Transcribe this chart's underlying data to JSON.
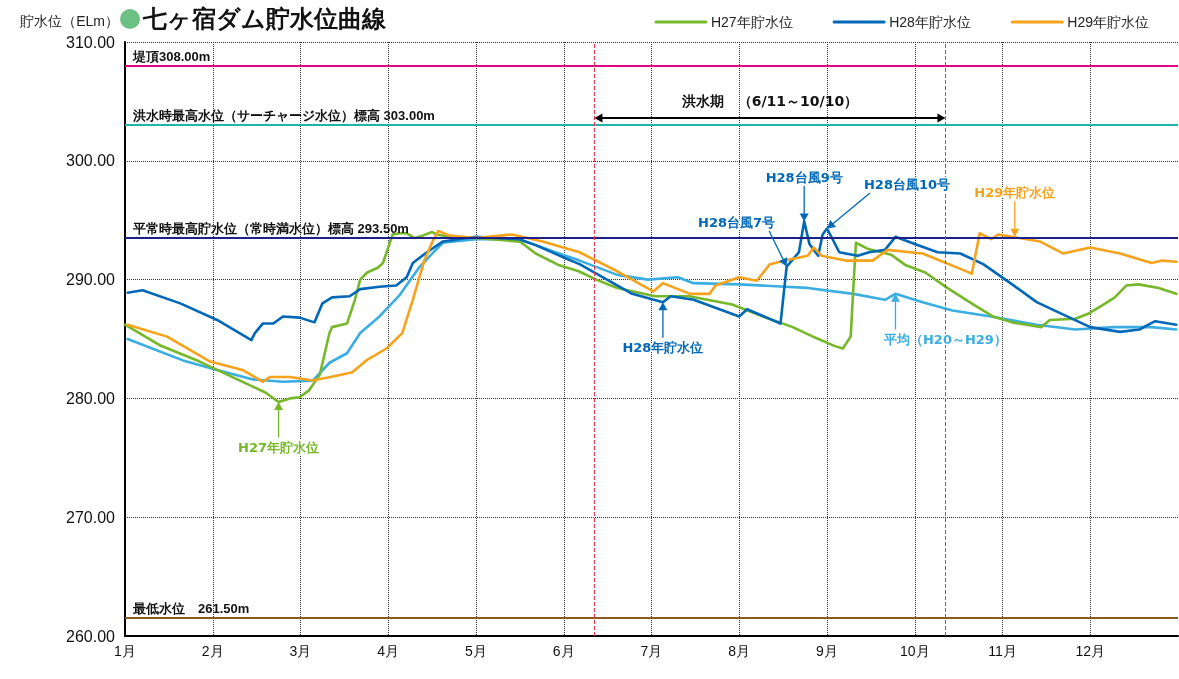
{
  "chart_data": {
    "type": "line",
    "title": "七ヶ宿ダム貯水位曲線",
    "ylabel": "貯水位（ELm）",
    "xlim": [
      1,
      13
    ],
    "xticks": [
      {
        "value": 1,
        "label": "1月"
      },
      {
        "value": 2,
        "label": "2月"
      },
      {
        "value": 3,
        "label": "3月"
      },
      {
        "value": 4,
        "label": "4月"
      },
      {
        "value": 5,
        "label": "5月"
      },
      {
        "value": 6,
        "label": "6月"
      },
      {
        "value": 7,
        "label": "7月"
      },
      {
        "value": 8,
        "label": "8月"
      },
      {
        "value": 9,
        "label": "9月"
      },
      {
        "value": 10,
        "label": "10月"
      },
      {
        "value": 11,
        "label": "11月"
      },
      {
        "value": 12,
        "label": "12月"
      }
    ],
    "ylim": [
      260,
      310
    ],
    "yticks": [
      {
        "value": 260,
        "label": "260.00"
      },
      {
        "value": 270,
        "label": "270.00"
      },
      {
        "value": 280,
        "label": "280.00"
      },
      {
        "value": 290,
        "label": "290.00"
      },
      {
        "value": 300,
        "label": "300.00"
      },
      {
        "value": 310,
        "label": "310.00"
      }
    ],
    "grid": true,
    "legend": "top right",
    "line_style": "solid",
    "series": [
      {
        "color": "#3aaee2",
        "x": [
          1.03,
          1.66,
          2.05,
          2.46,
          2.8,
          3.14,
          3.33,
          3.53,
          3.68,
          3.9,
          4.13,
          4.36,
          4.62,
          5.0,
          5.49,
          5.68,
          6.18,
          6.61,
          6.96,
          7.3,
          7.48,
          8.0,
          8.52,
          8.78,
          9.3,
          9.66,
          9.78,
          10.09,
          10.43,
          10.87,
          11.39,
          11.83,
          12.26,
          12.7,
          12.98
        ],
        "values": [
          285.0,
          283.2,
          282.4,
          281.6,
          281.4,
          281.5,
          283.0,
          283.8,
          285.5,
          286.9,
          288.7,
          291.1,
          293.1,
          293.4,
          293.4,
          292.9,
          291.6,
          290.4,
          290.0,
          290.2,
          289.7,
          289.6,
          289.4,
          289.3,
          288.8,
          288.3,
          288.8,
          288.1,
          287.4,
          286.9,
          286.2,
          285.8,
          286.0,
          286.0,
          285.8
        ]
      },
      {
        "name": "H27年貯水位",
        "color": "#76b82a",
        "x": [
          1.0,
          1.39,
          1.85,
          2.31,
          2.6,
          2.75,
          2.88,
          2.99,
          3.1,
          3.22,
          3.33,
          3.36,
          3.53,
          3.62,
          3.68,
          3.76,
          3.88,
          3.94,
          4.05,
          4.13,
          4.21,
          4.3,
          4.39,
          4.5,
          4.55,
          4.7,
          5.0,
          5.5,
          5.68,
          5.95,
          6.17,
          6.37,
          6.61,
          7.04,
          7.43,
          7.92,
          8.34,
          8.61,
          8.87,
          9.09,
          9.18,
          9.27,
          9.3,
          9.33,
          9.46,
          9.73,
          9.9,
          10.12,
          10.37,
          10.67,
          10.89,
          11.11,
          11.44,
          11.54,
          11.83,
          11.97,
          12.15,
          12.28,
          12.41,
          12.55,
          12.78,
          12.98
        ],
        "values": [
          286.2,
          284.5,
          283.1,
          281.5,
          280.5,
          279.7,
          280.0,
          280.1,
          280.7,
          282.0,
          285.5,
          286.0,
          286.3,
          288.3,
          290.0,
          290.6,
          291.0,
          291.4,
          293.8,
          293.9,
          293.9,
          293.5,
          293.7,
          294.0,
          293.8,
          293.6,
          293.5,
          293.2,
          292.2,
          291.2,
          290.7,
          290.0,
          289.3,
          288.6,
          288.6,
          287.9,
          286.7,
          286.0,
          285.1,
          284.4,
          284.2,
          285.2,
          289.3,
          293.1,
          292.6,
          292.1,
          291.2,
          290.6,
          289.3,
          287.9,
          286.9,
          286.4,
          286.0,
          286.6,
          286.7,
          287.1,
          287.9,
          288.5,
          289.5,
          289.6,
          289.3,
          288.8
        ]
      },
      {
        "name": "H28年貯水位",
        "color": "#0068b7",
        "x": [
          1.03,
          1.2,
          1.63,
          2.05,
          2.44,
          2.48,
          2.57,
          2.69,
          2.8,
          2.99,
          3.16,
          3.25,
          3.36,
          3.56,
          3.68,
          3.9,
          4.09,
          4.21,
          4.28,
          4.44,
          4.62,
          5.0,
          5.49,
          5.68,
          6.02,
          6.18,
          6.78,
          7.13,
          7.22,
          7.48,
          8.0,
          8.09,
          8.47,
          8.54,
          8.68,
          8.74,
          8.8,
          8.9,
          8.95,
          9.0,
          9.14,
          9.35,
          9.48,
          9.66,
          9.78,
          10.0,
          10.26,
          10.52,
          10.78,
          11.09,
          11.39,
          11.65,
          12.0,
          12.34,
          12.56,
          12.74,
          12.98
        ],
        "values": [
          288.9,
          289.1,
          288.0,
          286.6,
          284.9,
          285.5,
          286.3,
          286.3,
          286.9,
          286.8,
          286.4,
          288.0,
          288.5,
          288.6,
          289.2,
          289.4,
          289.5,
          290.2,
          291.4,
          292.3,
          293.2,
          293.6,
          293.4,
          292.9,
          291.8,
          291.3,
          288.8,
          288.1,
          288.6,
          288.3,
          286.9,
          287.5,
          286.3,
          291.1,
          292.3,
          294.9,
          293.0,
          292.0,
          293.8,
          294.3,
          292.3,
          292.0,
          292.3,
          292.5,
          293.6,
          293.0,
          292.3,
          292.2,
          291.3,
          289.7,
          288.1,
          287.2,
          286.0,
          285.6,
          285.8,
          286.5,
          286.2
        ]
      },
      {
        "name": "H29年貯水位",
        "color": "#f7a21b",
        "x": [
          1.03,
          1.48,
          1.97,
          2.34,
          2.57,
          2.65,
          2.88,
          3.14,
          3.41,
          3.59,
          3.75,
          3.98,
          4.16,
          4.28,
          4.41,
          4.51,
          4.57,
          4.7,
          5.0,
          5.41,
          5.76,
          6.18,
          6.61,
          7.02,
          7.13,
          7.44,
          7.66,
          7.73,
          8.0,
          8.2,
          8.35,
          8.52,
          8.78,
          8.85,
          8.94,
          9.21,
          9.52,
          9.69,
          10.09,
          10.52,
          10.65,
          10.74,
          10.87,
          10.95,
          11.43,
          11.69,
          12.0,
          12.34,
          12.7,
          12.82,
          12.98
        ],
        "values": [
          286.2,
          285.2,
          283.1,
          282.4,
          281.4,
          281.8,
          281.8,
          281.5,
          281.9,
          282.2,
          283.2,
          284.2,
          285.5,
          288.3,
          291.6,
          293.3,
          294.1,
          293.7,
          293.5,
          293.8,
          293.2,
          292.3,
          290.7,
          289.0,
          289.7,
          288.8,
          288.8,
          289.5,
          290.2,
          289.9,
          291.3,
          291.6,
          292.0,
          292.7,
          292.0,
          291.6,
          291.6,
          292.5,
          292.2,
          290.9,
          290.5,
          293.9,
          293.4,
          293.8,
          293.2,
          292.2,
          292.7,
          292.2,
          291.4,
          291.6,
          291.5
        ]
      }
    ],
    "ref_lines": [
      {
        "axis": "y",
        "value": 308,
        "label": "堤頂308.00m",
        "color": "#e4007f"
      },
      {
        "axis": "y",
        "value": 303,
        "label": "洪水時最高水位（サーチャージ水位）標高 303.00m",
        "color": "#1fb5a8"
      },
      {
        "axis": "y",
        "value": 293.5,
        "label": "平常時最高貯水位（常時満水位）標高 293.50m",
        "color": "#1d2088"
      },
      {
        "axis": "y",
        "value": 261.5,
        "label": "最低水位　261.50m",
        "color": "#8b5a1e"
      },
      {
        "axis": "x",
        "value": 6.35,
        "color": "#e8384f",
        "line_style": "dashed"
      },
      {
        "axis": "x",
        "value": 10.35,
        "color": "#e8384f",
        "line_style": "dashed"
      }
    ],
    "annotations": [
      "洪水期　（6/11～10/10）",
      {
        "text": "H28台風7号",
        "x": 8.54,
        "y": 291.1
      },
      {
        "text": "H28台風9号",
        "x": 8.74,
        "y": 294.9
      },
      {
        "text": "H28台風10号",
        "x": 9.0,
        "y": 294.3
      },
      {
        "text": "H27年貯水位",
        "x": 2.75,
        "y": 279.7
      },
      {
        "text": "H28年貯水位",
        "x": 7.13,
        "y": 288.1
      },
      {
        "text": "平均（H20～H29）",
        "x": 9.78,
        "y": 288.8
      },
      {
        "text": "H29年貯水位",
        "x": 11.14,
        "y": 293.6
      }
    ]
  }
}
